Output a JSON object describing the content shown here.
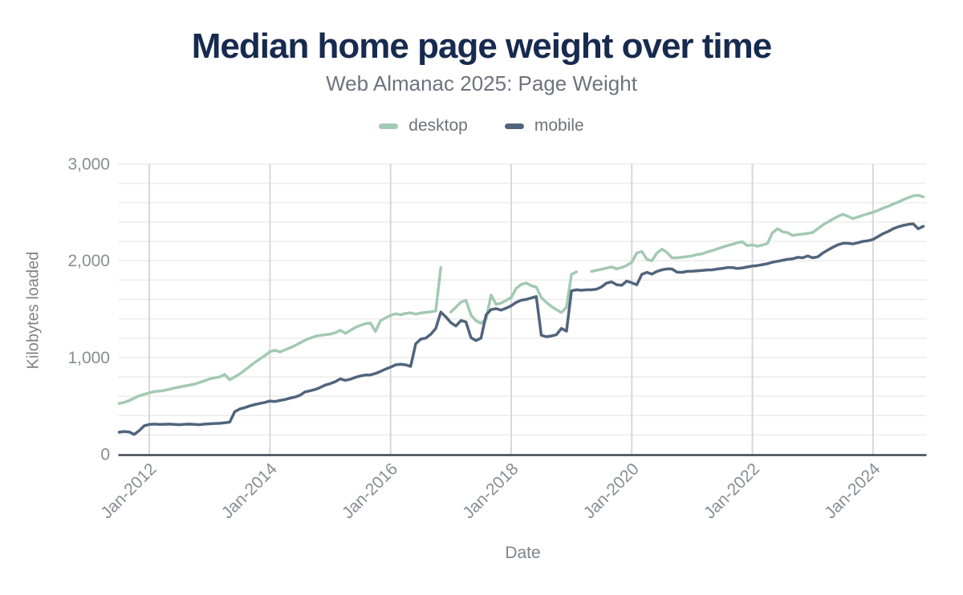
{
  "header": {
    "title": "Median home page weight over time",
    "subtitle": "Web Almanac 2025: Page Weight"
  },
  "axes": {
    "x_title": "Date",
    "y_title": "Kilobytes loaded"
  },
  "colors": {
    "desktop": "#a3c9b2",
    "mobile": "#50647c",
    "title_text": "#172a4f",
    "subtitle_text": "#6d737e",
    "tick_text": "#878d94",
    "axis_title_text": "#7d838b",
    "grid_minor": "#ececec",
    "grid_vertical": "#d8d8d8",
    "axis_line": "#3d4752"
  },
  "chart_data": {
    "type": "line",
    "title": "Median home page weight over time",
    "subtitle": "Web Almanac 2025: Page Weight",
    "xlabel": "Date",
    "ylabel": "Kilobytes loaded",
    "ylim": [
      0,
      3000
    ],
    "grid": "horizontal minor every 200, vertical at 2-year ticks",
    "legend_position": "top-center",
    "x_unit": "month",
    "x_start_approx": "Jul-2011",
    "x_end_approx": "Nov-2024",
    "y_ticks": [
      {
        "label": "0",
        "value": 0
      },
      {
        "label": "1,000",
        "value": 1000
      },
      {
        "label": "2,000",
        "value": 2000
      },
      {
        "label": "3,000",
        "value": 3000
      }
    ],
    "x_ticks": [
      {
        "label": "Jan-2012",
        "index": 6
      },
      {
        "label": "Jan-2014",
        "index": 30
      },
      {
        "label": "Jan-2016",
        "index": 54
      },
      {
        "label": "Jan-2018",
        "index": 78
      },
      {
        "label": "Jan-2020",
        "index": 102
      },
      {
        "label": "Jan-2022",
        "index": 126
      },
      {
        "label": "Jan-2024",
        "index": 150
      }
    ],
    "series": [
      {
        "name": "desktop",
        "color": "#a3c9b2",
        "values": [
          525,
          535,
          555,
          580,
          605,
          620,
          635,
          648,
          652,
          660,
          672,
          685,
          695,
          705,
          715,
          725,
          742,
          760,
          778,
          790,
          800,
          825,
          770,
          800,
          830,
          870,
          910,
          950,
          985,
          1020,
          1060,
          1075,
          1058,
          1080,
          1100,
          1125,
          1150,
          1180,
          1200,
          1218,
          1228,
          1235,
          1242,
          1256,
          1282,
          1250,
          1280,
          1310,
          1332,
          1350,
          1356,
          1270,
          1380,
          1410,
          1435,
          1452,
          1442,
          1455,
          1462,
          1448,
          1460,
          1466,
          1472,
          1482,
          1930,
          null,
          1470,
          1520,
          1572,
          1592,
          1440,
          1380,
          1355,
          1395,
          1645,
          1550,
          1562,
          1590,
          1620,
          1715,
          1755,
          1770,
          1742,
          1728,
          1620,
          1570,
          1528,
          1495,
          1465,
          1520,
          1860,
          1885,
          null,
          null,
          1890,
          1900,
          1912,
          1925,
          1936,
          1916,
          1930,
          1952,
          1985,
          2080,
          2095,
          2015,
          2000,
          2080,
          2120,
          2085,
          2030,
          2030,
          2036,
          2042,
          2050,
          2064,
          2072,
          2090,
          2105,
          2122,
          2140,
          2156,
          2170,
          2186,
          2196,
          2156,
          2165,
          2150,
          2162,
          2180,
          2290,
          2330,
          2300,
          2290,
          2262,
          2270,
          2276,
          2282,
          2292,
          2330,
          2370,
          2400,
          2430,
          2458,
          2480,
          2460,
          2436,
          2452,
          2470,
          2486,
          2500,
          2520,
          2544,
          2562,
          2586,
          2606,
          2630,
          2652,
          2670,
          2676,
          2660
        ]
      },
      {
        "name": "mobile",
        "color": "#50647c",
        "values": [
          228,
          235,
          230,
          205,
          245,
          295,
          308,
          312,
          308,
          310,
          312,
          308,
          306,
          310,
          312,
          308,
          306,
          312,
          315,
          318,
          320,
          326,
          332,
          440,
          468,
          482,
          500,
          514,
          525,
          536,
          550,
          545,
          556,
          566,
          580,
          592,
          610,
          645,
          656,
          670,
          690,
          715,
          730,
          750,
          780,
          764,
          776,
          795,
          810,
          820,
          820,
          835,
          856,
          880,
          900,
          924,
          930,
          924,
          908,
          1140,
          1190,
          1200,
          1240,
          1300,
          1470,
          1420,
          1360,
          1325,
          1382,
          1368,
          1205,
          1175,
          1200,
          1440,
          1495,
          1505,
          1490,
          1510,
          1535,
          1570,
          1592,
          1600,
          1615,
          1630,
          1230,
          1215,
          1222,
          1236,
          1300,
          1272,
          1690,
          1700,
          1695,
          1700,
          1700,
          1706,
          1730,
          1770,
          1782,
          1752,
          1746,
          1790,
          1772,
          1752,
          1860,
          1880,
          1862,
          1890,
          1906,
          1916,
          1914,
          1882,
          1880,
          1890,
          1892,
          1896,
          1900,
          1905,
          1906,
          1914,
          1920,
          1930,
          1930,
          1920,
          1926,
          1936,
          1945,
          1950,
          1960,
          1970,
          1985,
          1995,
          2005,
          2015,
          2020,
          2035,
          2030,
          2050,
          2030,
          2040,
          2080,
          2110,
          2140,
          2165,
          2180,
          2180,
          2174,
          2186,
          2200,
          2206,
          2220,
          2250,
          2280,
          2302,
          2330,
          2350,
          2365,
          2376,
          2382,
          2330,
          2356
        ]
      }
    ]
  }
}
